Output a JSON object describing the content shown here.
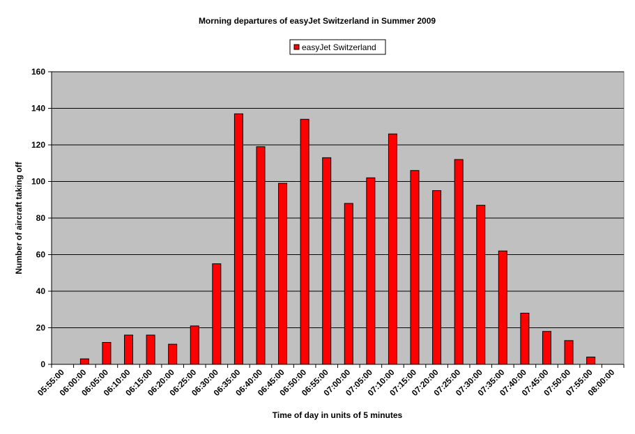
{
  "chart_data": {
    "type": "bar",
    "title": "Morning departures of easyJet Switzerland in Summer 2009",
    "xlabel": "Time of day in units of 5 minutes",
    "ylabel": "Number of aircraft taking off",
    "ylim": [
      0,
      160
    ],
    "yticks": [
      0,
      20,
      40,
      60,
      80,
      100,
      120,
      140,
      160
    ],
    "grid": true,
    "legend_position": "top-center",
    "categories": [
      "05:55:00",
      "06:00:00",
      "06:05:00",
      "06:10:00",
      "06:15:00",
      "06:20:00",
      "06:25:00",
      "06:30:00",
      "06:35:00",
      "06:40:00",
      "06:45:00",
      "06:50:00",
      "06:55:00",
      "07:00:00",
      "07:05:00",
      "07:10:00",
      "07:15:00",
      "07:20:00",
      "07:25:00",
      "07:30:00",
      "07:35:00",
      "07:40:00",
      "07:45:00",
      "07:50:00",
      "07:55:00",
      "08:00:00"
    ],
    "series": [
      {
        "name": "easyJet Switzerland",
        "color": "#ff0000",
        "values": [
          0,
          3,
          12,
          16,
          16,
          11,
          21,
          55,
          137,
          119,
          99,
          134,
          113,
          88,
          102,
          126,
          106,
          95,
          112,
          87,
          62,
          28,
          18,
          13,
          4,
          0
        ]
      }
    ]
  },
  "colors": {
    "plot_background": "#c0c0c0",
    "bar_fill": "#ff0000",
    "bar_stroke": "#000000",
    "gridline": "#000000"
  }
}
